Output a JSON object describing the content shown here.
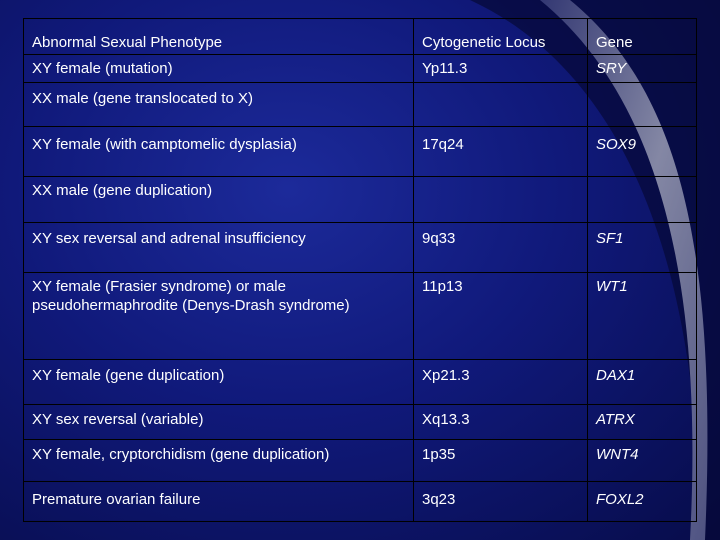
{
  "table": {
    "headers": [
      "Abnormal Sexual Phenotype",
      "Cytogenetic Locus",
      "Gene"
    ],
    "rows": [
      {
        "phenotype": "XY female (mutation)",
        "locus": "Yp11.3",
        "gene": "SRY"
      },
      {
        "phenotype": "XX male (gene translocated to X)",
        "locus": "",
        "gene": ""
      },
      {
        "phenotype": "XY female (with camptomelic dysplasia)",
        "locus": "17q24",
        "gene": "SOX9"
      },
      {
        "phenotype": "XX male (gene duplication)",
        "locus": "",
        "gene": ""
      },
      {
        "phenotype": "XY sex reversal and adrenal insufficiency",
        "locus": "9q33",
        "gene": "SF1"
      },
      {
        "phenotype": "XY female (Frasier syndrome) or male pseudohermaphrodite (Denys-Drash syndrome)",
        "locus": "11p13",
        "gene": "WT1"
      },
      {
        "phenotype": "XY female (gene duplication)",
        "locus": "Xp21.3",
        "gene": "DAX1"
      },
      {
        "phenotype": "XY sex reversal (variable)",
        "locus": "Xq13.3",
        "gene": "ATRX"
      },
      {
        "phenotype": "XY female, cryptorchidism (gene duplication)",
        "locus": "1p35",
        "gene": "WNT4"
      },
      {
        "phenotype": "Premature ovarian failure",
        "locus": "3q23",
        "gene": "FOXL2"
      }
    ]
  },
  "colors": {
    "background": "#10197a",
    "text": "#ffffff",
    "swoosh": "#8a8ea8"
  }
}
